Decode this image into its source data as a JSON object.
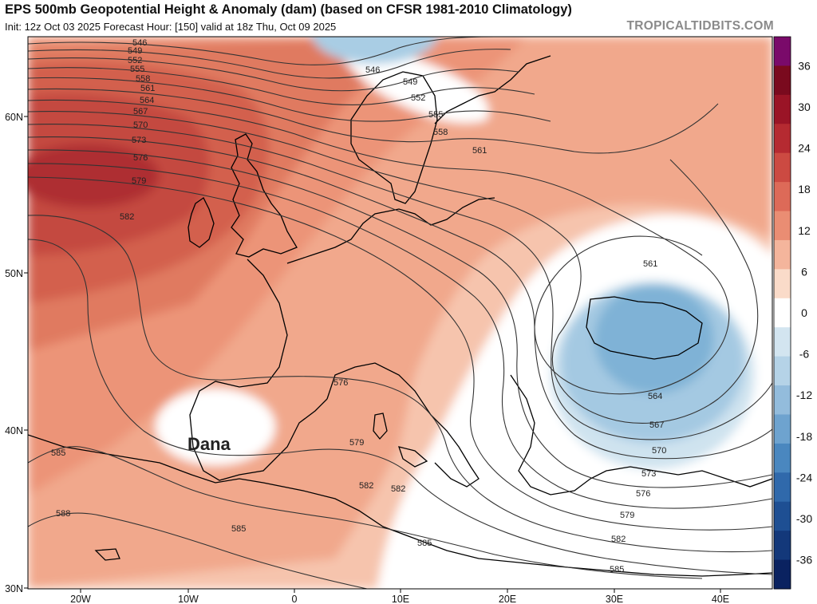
{
  "header": {
    "title": "EPS 500mb Geopotential Height & Anomaly (dam) (based on CFSR 1981-2010 Climatology)",
    "subtitle": "Init: 12z Oct 03 2025   Forecast Hour: [150]   valid at 18z Thu, Oct 09 2025",
    "brand": "TROPICALTIDBITS.COM"
  },
  "map": {
    "region": "Europe / North Atlantic",
    "annotation": "Dana",
    "lat_labels": [
      "60N",
      "50N",
      "40N",
      "30N"
    ],
    "lon_labels": [
      "20W",
      "10W",
      "0",
      "10E",
      "20E",
      "30E",
      "40E"
    ],
    "contour_labels": [
      "546",
      "549",
      "552",
      "555",
      "558",
      "561",
      "564",
      "567",
      "570",
      "573",
      "576",
      "579",
      "582",
      "546",
      "549",
      "552",
      "555",
      "558",
      "561",
      "561",
      "564",
      "567",
      "570",
      "573",
      "576",
      "576",
      "579",
      "579",
      "582",
      "582",
      "582",
      "585",
      "585",
      "585",
      "585",
      "588"
    ]
  },
  "colorbar": {
    "ticks": [
      "36",
      "30",
      "24",
      "18",
      "12",
      "6",
      "0",
      "-6",
      "-12",
      "-18",
      "-24",
      "-30",
      "-36"
    ],
    "colors": [
      "#7a0a6a",
      "#7a0a1e",
      "#9a1426",
      "#b52a31",
      "#cc4a42",
      "#dd6a58",
      "#ea8d73",
      "#f4b59c",
      "#fadbc9",
      "#ffffff",
      "#d3e5f0",
      "#b5d3e7",
      "#93bcdc",
      "#6ea3cf",
      "#4a87bf",
      "#3069ab",
      "#1e4f93",
      "#13387a",
      "#0a2260"
    ]
  }
}
